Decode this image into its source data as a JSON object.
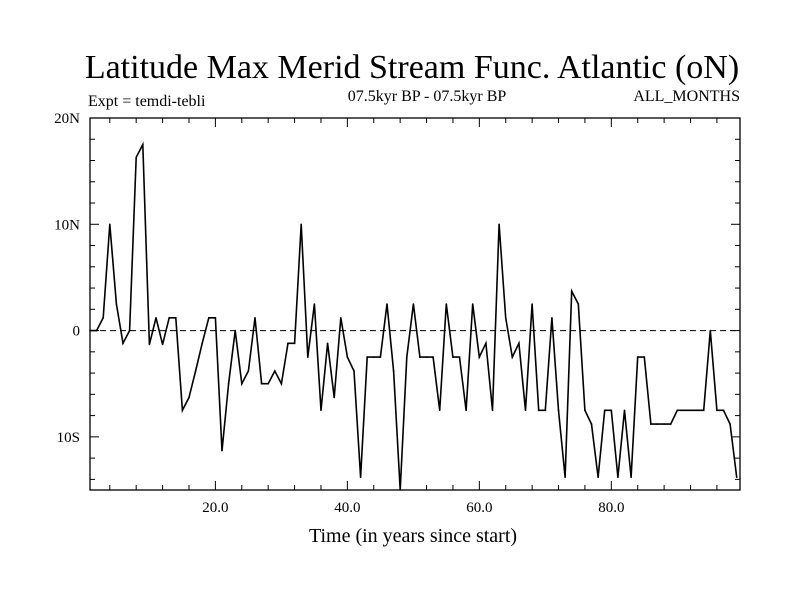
{
  "chart_data": {
    "type": "line",
    "title": "Latitude Max Merid Stream Func. Atlantic (oN)",
    "subtitle_left": "Expt = temdi-tebli",
    "subtitle_center": "07.5kyr BP - 07.5kyr BP",
    "subtitle_right": "ALL_MONTHS",
    "xlabel": "Time (in years since start)",
    "ylabel": "",
    "xlim": [
      1,
      99.5
    ],
    "ylim": [
      -15,
      20
    ],
    "xticks": [
      {
        "value": 20,
        "label": "20.0"
      },
      {
        "value": 40,
        "label": "40.0"
      },
      {
        "value": 60,
        "label": "60.0"
      },
      {
        "value": 80,
        "label": "80.0"
      }
    ],
    "yticks": [
      {
        "value": 20,
        "label": "20N"
      },
      {
        "value": 10,
        "label": "10N"
      },
      {
        "value": 0,
        "label": "0"
      },
      {
        "value": -10,
        "label": "10S"
      }
    ],
    "reference_line": {
      "y": 0,
      "style": "dashed"
    },
    "series": [
      {
        "name": "Latitude Max",
        "x": [
          1,
          2,
          3,
          4,
          5,
          6,
          7,
          8,
          9,
          10,
          11,
          12,
          13,
          14,
          15,
          16,
          17,
          18,
          19,
          20,
          21,
          22,
          23,
          24,
          25,
          26,
          27,
          28,
          29,
          30,
          31,
          32,
          33,
          34,
          35,
          36,
          37,
          38,
          39,
          40,
          41,
          42,
          43,
          44,
          45,
          46,
          47,
          48,
          49,
          50,
          51,
          52,
          53,
          54,
          55,
          56,
          57,
          58,
          59,
          60,
          61,
          62,
          63,
          64,
          65,
          66,
          67,
          68,
          69,
          70,
          71,
          72,
          73,
          74,
          75,
          76,
          77,
          78,
          79,
          80,
          81,
          82,
          83,
          84,
          85,
          86,
          87,
          88,
          89,
          90,
          91,
          92,
          93,
          94,
          95,
          96,
          97,
          98,
          99
        ],
        "values": [
          0,
          0,
          1.2,
          10,
          2.5,
          -1.2,
          0,
          16.3,
          17.5,
          -1.3,
          1.2,
          -1.3,
          1.2,
          1.2,
          -7.5,
          -6.3,
          -3.8,
          -1.2,
          1.2,
          1.2,
          -11.3,
          -5,
          0,
          -5,
          -3.8,
          1.2,
          -5,
          -5,
          -3.8,
          -5,
          -1.2,
          -1.2,
          10,
          -2.5,
          2.5,
          -7.5,
          -1.2,
          -6.3,
          1.2,
          -2.5,
          -3.8,
          -13.8,
          -2.5,
          -2.5,
          -2.5,
          2.5,
          -3.8,
          -15,
          -2.5,
          2.5,
          -2.5,
          -2.5,
          -2.5,
          -7.5,
          2.5,
          -2.5,
          -2.5,
          -7.5,
          2.5,
          -2.5,
          -1.2,
          -7.5,
          10,
          1.2,
          -2.5,
          -1.2,
          -7.5,
          2.5,
          -7.5,
          -7.5,
          1.2,
          -7.5,
          -13.8,
          3.7,
          2.5,
          -7.5,
          -8.8,
          -13.8,
          -7.5,
          -7.5,
          -13.8,
          -7.5,
          -13.8,
          -2.5,
          -2.5,
          -8.8,
          -8.8,
          -8.8,
          -8.8,
          -7.5,
          -7.5,
          -7.5,
          -7.5,
          -7.5,
          0,
          -7.5,
          -7.5,
          -8.8,
          -13.8
        ]
      }
    ]
  }
}
